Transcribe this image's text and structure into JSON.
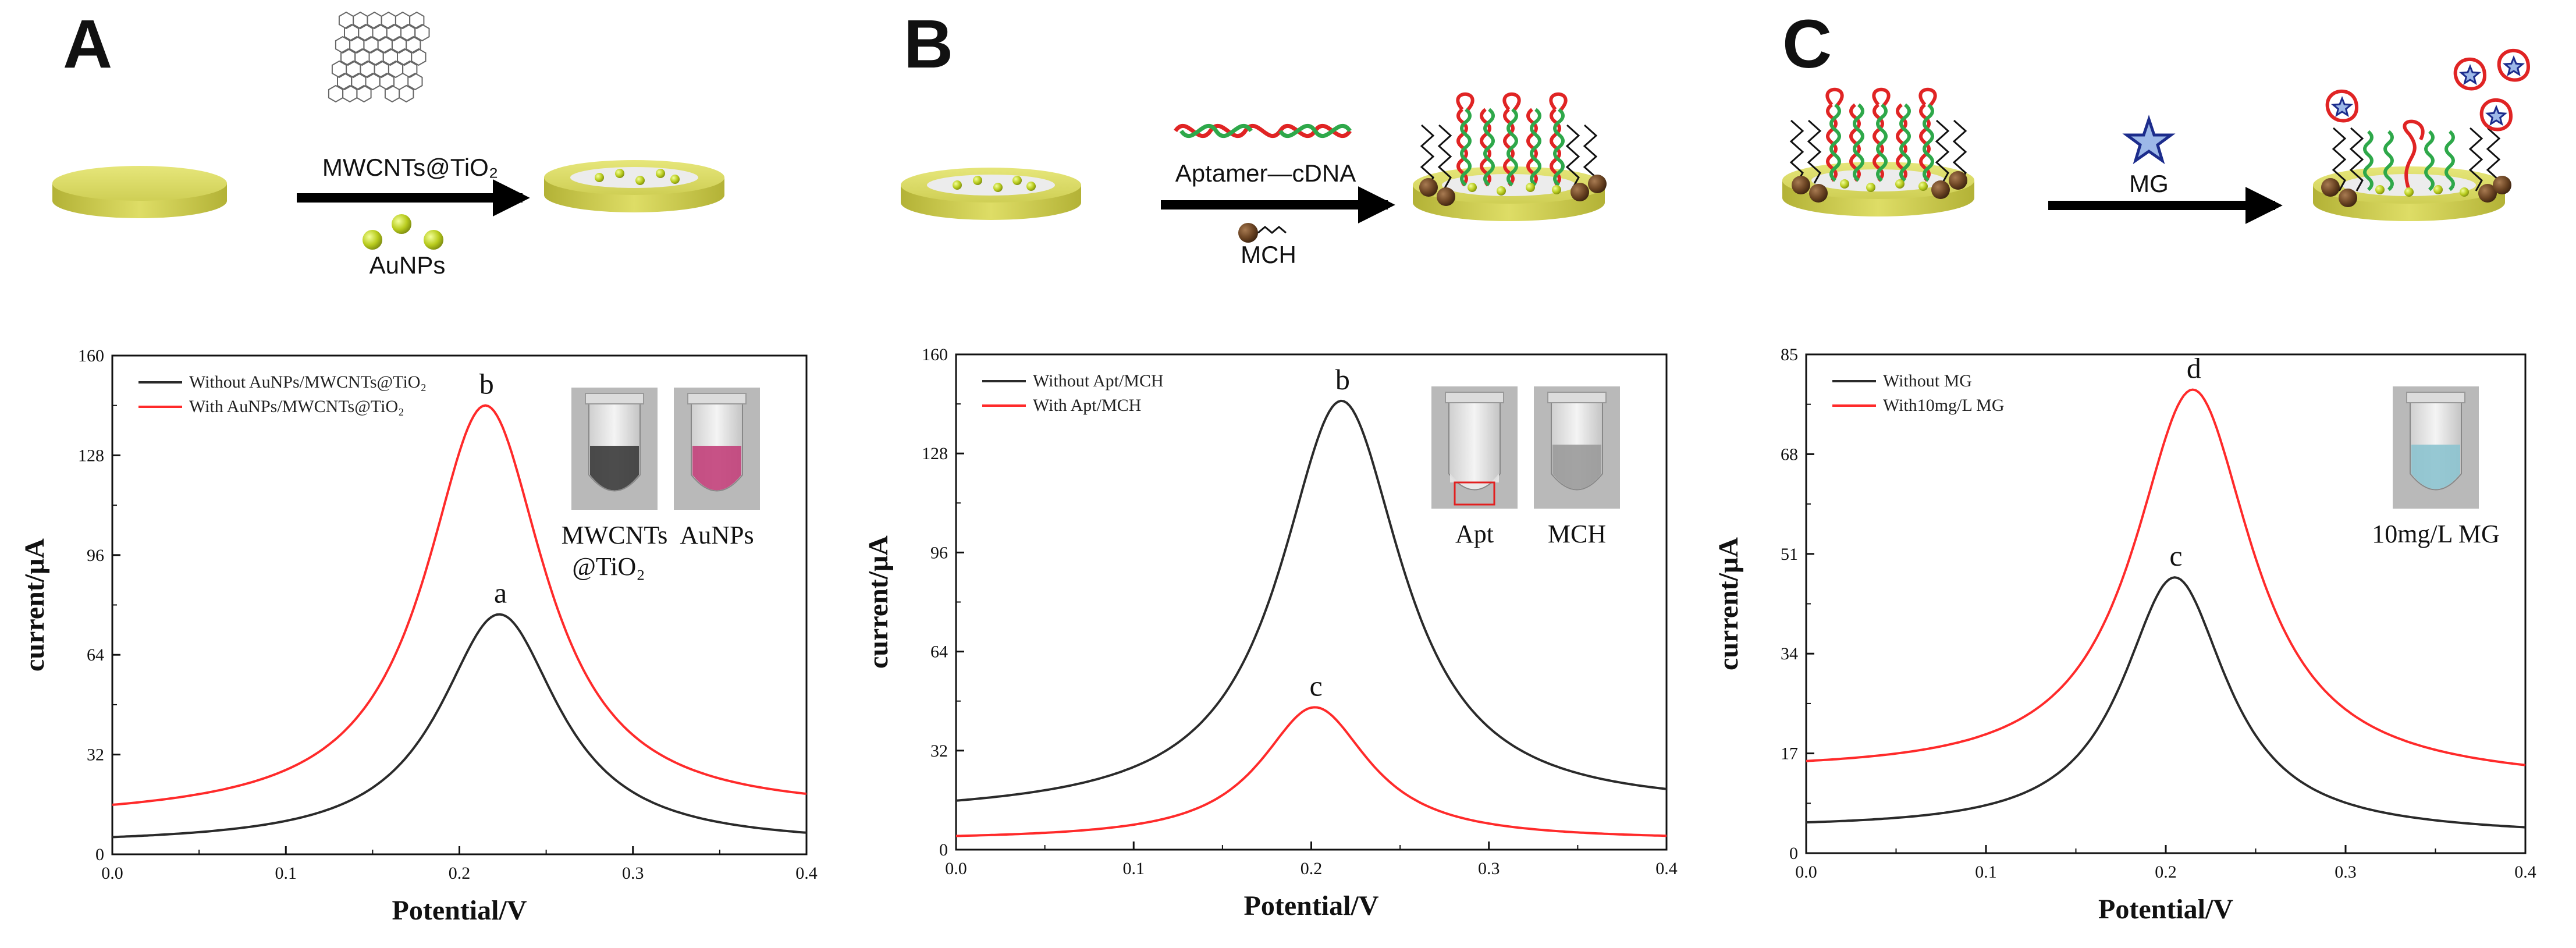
{
  "diagram": {
    "A": {
      "letter": "A",
      "arrow_label_top": "MWCNTs@TiO₂",
      "arrow_label_bottom": "AuNPs"
    },
    "B": {
      "letter": "B",
      "arrow_label_top": "Aptamer—cDNA",
      "arrow_label_bottom": "MCH"
    },
    "C": {
      "letter": "C",
      "arrow_label_top": "MG"
    }
  },
  "colors": {
    "black_series": "#2a2a2a",
    "red_series": "#ff2a2a",
    "electrode": "#d4d455",
    "electrode_dark": "#a9a832",
    "arrow": "#000000",
    "dna_red": "#e02424",
    "dna_green": "#2ea84a",
    "mch_ball": "#6b4423"
  },
  "chart_data": [
    {
      "id": "A",
      "type": "line",
      "title": "",
      "xlabel": "Potential/V",
      "ylabel": "current/μA",
      "xlim": [
        0.0,
        0.4
      ],
      "ylim": [
        0,
        160
      ],
      "x_ticks": [
        "0.0",
        "0.1",
        "0.2",
        "0.3",
        "0.4"
      ],
      "y_ticks": [
        "0",
        "32",
        "64",
        "96",
        "128",
        "160"
      ],
      "legend_position": "top-left",
      "series": [
        {
          "name": "Without AuNPs/MWCNTs@TiO₂",
          "color": "#2a2a2a",
          "peak_x": 0.223,
          "peak_y": 77,
          "baseline_start": 3,
          "baseline_end": 3,
          "width": 0.045,
          "label": "a"
        },
        {
          "name": "With AuNPs/MWCNTs@TiO₂",
          "color": "#ff2a2a",
          "peak_x": 0.215,
          "peak_y": 144,
          "baseline_start": 11,
          "baseline_end": 13,
          "width": 0.045,
          "label": "b"
        }
      ],
      "insets": [
        {
          "label": "MWCNTs\n@TiO₂",
          "line1": "MWCNTs",
          "line2": "@TiO₂",
          "liquid": "#3a3a3a"
        },
        {
          "label": "AuNPs",
          "line1": "AuNPs",
          "line2": "",
          "liquid": "#c2407a"
        }
      ]
    },
    {
      "id": "B",
      "type": "line",
      "title": "",
      "xlabel": "Potential/V",
      "ylabel": "current/μA",
      "xlim": [
        0.0,
        0.4
      ],
      "ylim": [
        0,
        160
      ],
      "x_ticks": [
        "0.0",
        "0.1",
        "0.2",
        "0.3",
        "0.4"
      ],
      "y_ticks": [
        "0",
        "32",
        "64",
        "96",
        "128",
        "160"
      ],
      "legend_position": "top-left",
      "series": [
        {
          "name": "Without Apt/MCH",
          "color": "#2a2a2a",
          "peak_x": 0.217,
          "peak_y": 145,
          "baseline_start": 11,
          "baseline_end": 13,
          "width": 0.045,
          "label": "b"
        },
        {
          "name": "With Apt/MCH",
          "color": "#ff2a2a",
          "peak_x": 0.202,
          "peak_y": 46,
          "baseline_start": 3,
          "baseline_end": 3,
          "width": 0.04,
          "label": "c"
        }
      ],
      "insets": [
        {
          "label": "Apt",
          "line1": "Apt",
          "line2": "",
          "liquid": "#e8e8e8"
        },
        {
          "label": "MCH",
          "line1": "MCH",
          "line2": "",
          "liquid": "#9a9a9a"
        }
      ]
    },
    {
      "id": "C",
      "type": "line",
      "title": "",
      "xlabel": "Potential/V",
      "ylabel": "current/μA",
      "xlim": [
        0.0,
        0.4
      ],
      "ylim": [
        0,
        85
      ],
      "x_ticks": [
        "0.0",
        "0.1",
        "0.2",
        "0.3",
        "0.4"
      ],
      "y_ticks": [
        "0",
        "17",
        "34",
        "51",
        "68",
        "85"
      ],
      "legend_position": "top-left",
      "series": [
        {
          "name": "Without MG",
          "color": "#2a2a2a",
          "peak_x": 0.205,
          "peak_y": 47,
          "baseline_start": 4,
          "baseline_end": 3,
          "width": 0.038,
          "label": "c"
        },
        {
          "name": "With10mg/L MG",
          "color": "#ff2a2a",
          "peak_x": 0.215,
          "peak_y": 79,
          "baseline_start": 13.5,
          "baseline_end": 12,
          "width": 0.043,
          "label": "d"
        }
      ],
      "insets": [
        {
          "label": "10mg/L MG",
          "line1": "10mg/L MG",
          "line2": "",
          "liquid": "#8cc3cf"
        }
      ]
    }
  ]
}
